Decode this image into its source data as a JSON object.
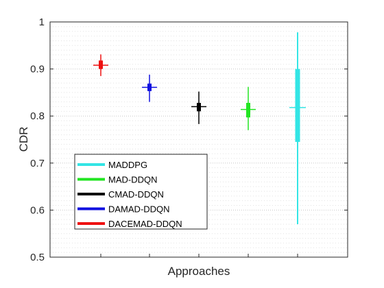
{
  "chart_data": {
    "type": "boxplot",
    "xlabel": "Approaches",
    "ylabel": "CDR",
    "ylim": [
      0.5,
      1.0
    ],
    "yticks": [
      "0.5",
      "0.6",
      "0.7",
      "0.8",
      "0.9",
      "1"
    ],
    "grid": "dotted",
    "legend_position": "bottom-left",
    "series": [
      {
        "name": "MADDPG",
        "color": "#33e5e5",
        "median": 0.818,
        "q1": 0.745,
        "q3": 0.9,
        "whisker_low": 0.57,
        "whisker_high": 0.978
      },
      {
        "name": "MAD-DDQN",
        "color": "#22e522",
        "median": 0.814,
        "q1": 0.797,
        "q3": 0.828,
        "whisker_low": 0.77,
        "whisker_high": 0.862
      },
      {
        "name": "CMAD-DDQN",
        "color": "#000000",
        "median": 0.82,
        "q1": 0.81,
        "q3": 0.828,
        "whisker_low": 0.783,
        "whisker_high": 0.852
      },
      {
        "name": "DAMAD-DDQN",
        "color": "#1010e0",
        "median": 0.861,
        "q1": 0.853,
        "q3": 0.869,
        "whisker_low": 0.83,
        "whisker_high": 0.888
      },
      {
        "name": "DACEMAD-DDQN",
        "color": "#ee1111",
        "median": 0.908,
        "q1": 0.9,
        "q3": 0.918,
        "whisker_low": 0.885,
        "whisker_high": 0.931
      }
    ],
    "draw_order": [
      4,
      3,
      2,
      1,
      0
    ]
  }
}
